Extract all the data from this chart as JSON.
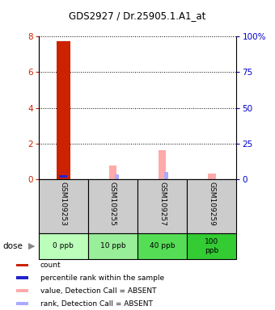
{
  "title": "GDS2927 / Dr.25905.1.A1_at",
  "samples": [
    "GSM109253",
    "GSM109255",
    "GSM109257",
    "GSM109259"
  ],
  "doses": [
    "0 ppb",
    "10 ppb",
    "40 ppb",
    "100\nppb"
  ],
  "dose_colors": [
    "#bbffbb",
    "#99ee99",
    "#55dd55",
    "#33cc33"
  ],
  "sample_bg_color": "#cccccc",
  "count_values": [
    7.75,
    0,
    0,
    0
  ],
  "percentile_rank_value": 1.85,
  "percentile_rank_sample": 0,
  "value_absent_values": [
    0,
    0.78,
    1.65,
    0.32
  ],
  "rank_absent_values": [
    0,
    0.25,
    0.42,
    0.0
  ],
  "count_color": "#cc2200",
  "percentile_color": "#2222cc",
  "value_absent_color": "#ffaaaa",
  "rank_absent_color": "#aaaaff",
  "ylim_left": [
    0,
    8
  ],
  "ylim_right": [
    0,
    100
  ],
  "yticks_left": [
    0,
    2,
    4,
    6,
    8
  ],
  "yticks_right": [
    0,
    25,
    50,
    75,
    100
  ],
  "ylabel_left_color": "#cc2200",
  "ylabel_right_color": "#0000cc",
  "legend_items": [
    {
      "label": "count",
      "color": "#cc2200"
    },
    {
      "label": "percentile rank within the sample",
      "color": "#2222cc"
    },
    {
      "label": "value, Detection Call = ABSENT",
      "color": "#ffaaaa"
    },
    {
      "label": "rank, Detection Call = ABSENT",
      "color": "#aaaaff"
    }
  ]
}
